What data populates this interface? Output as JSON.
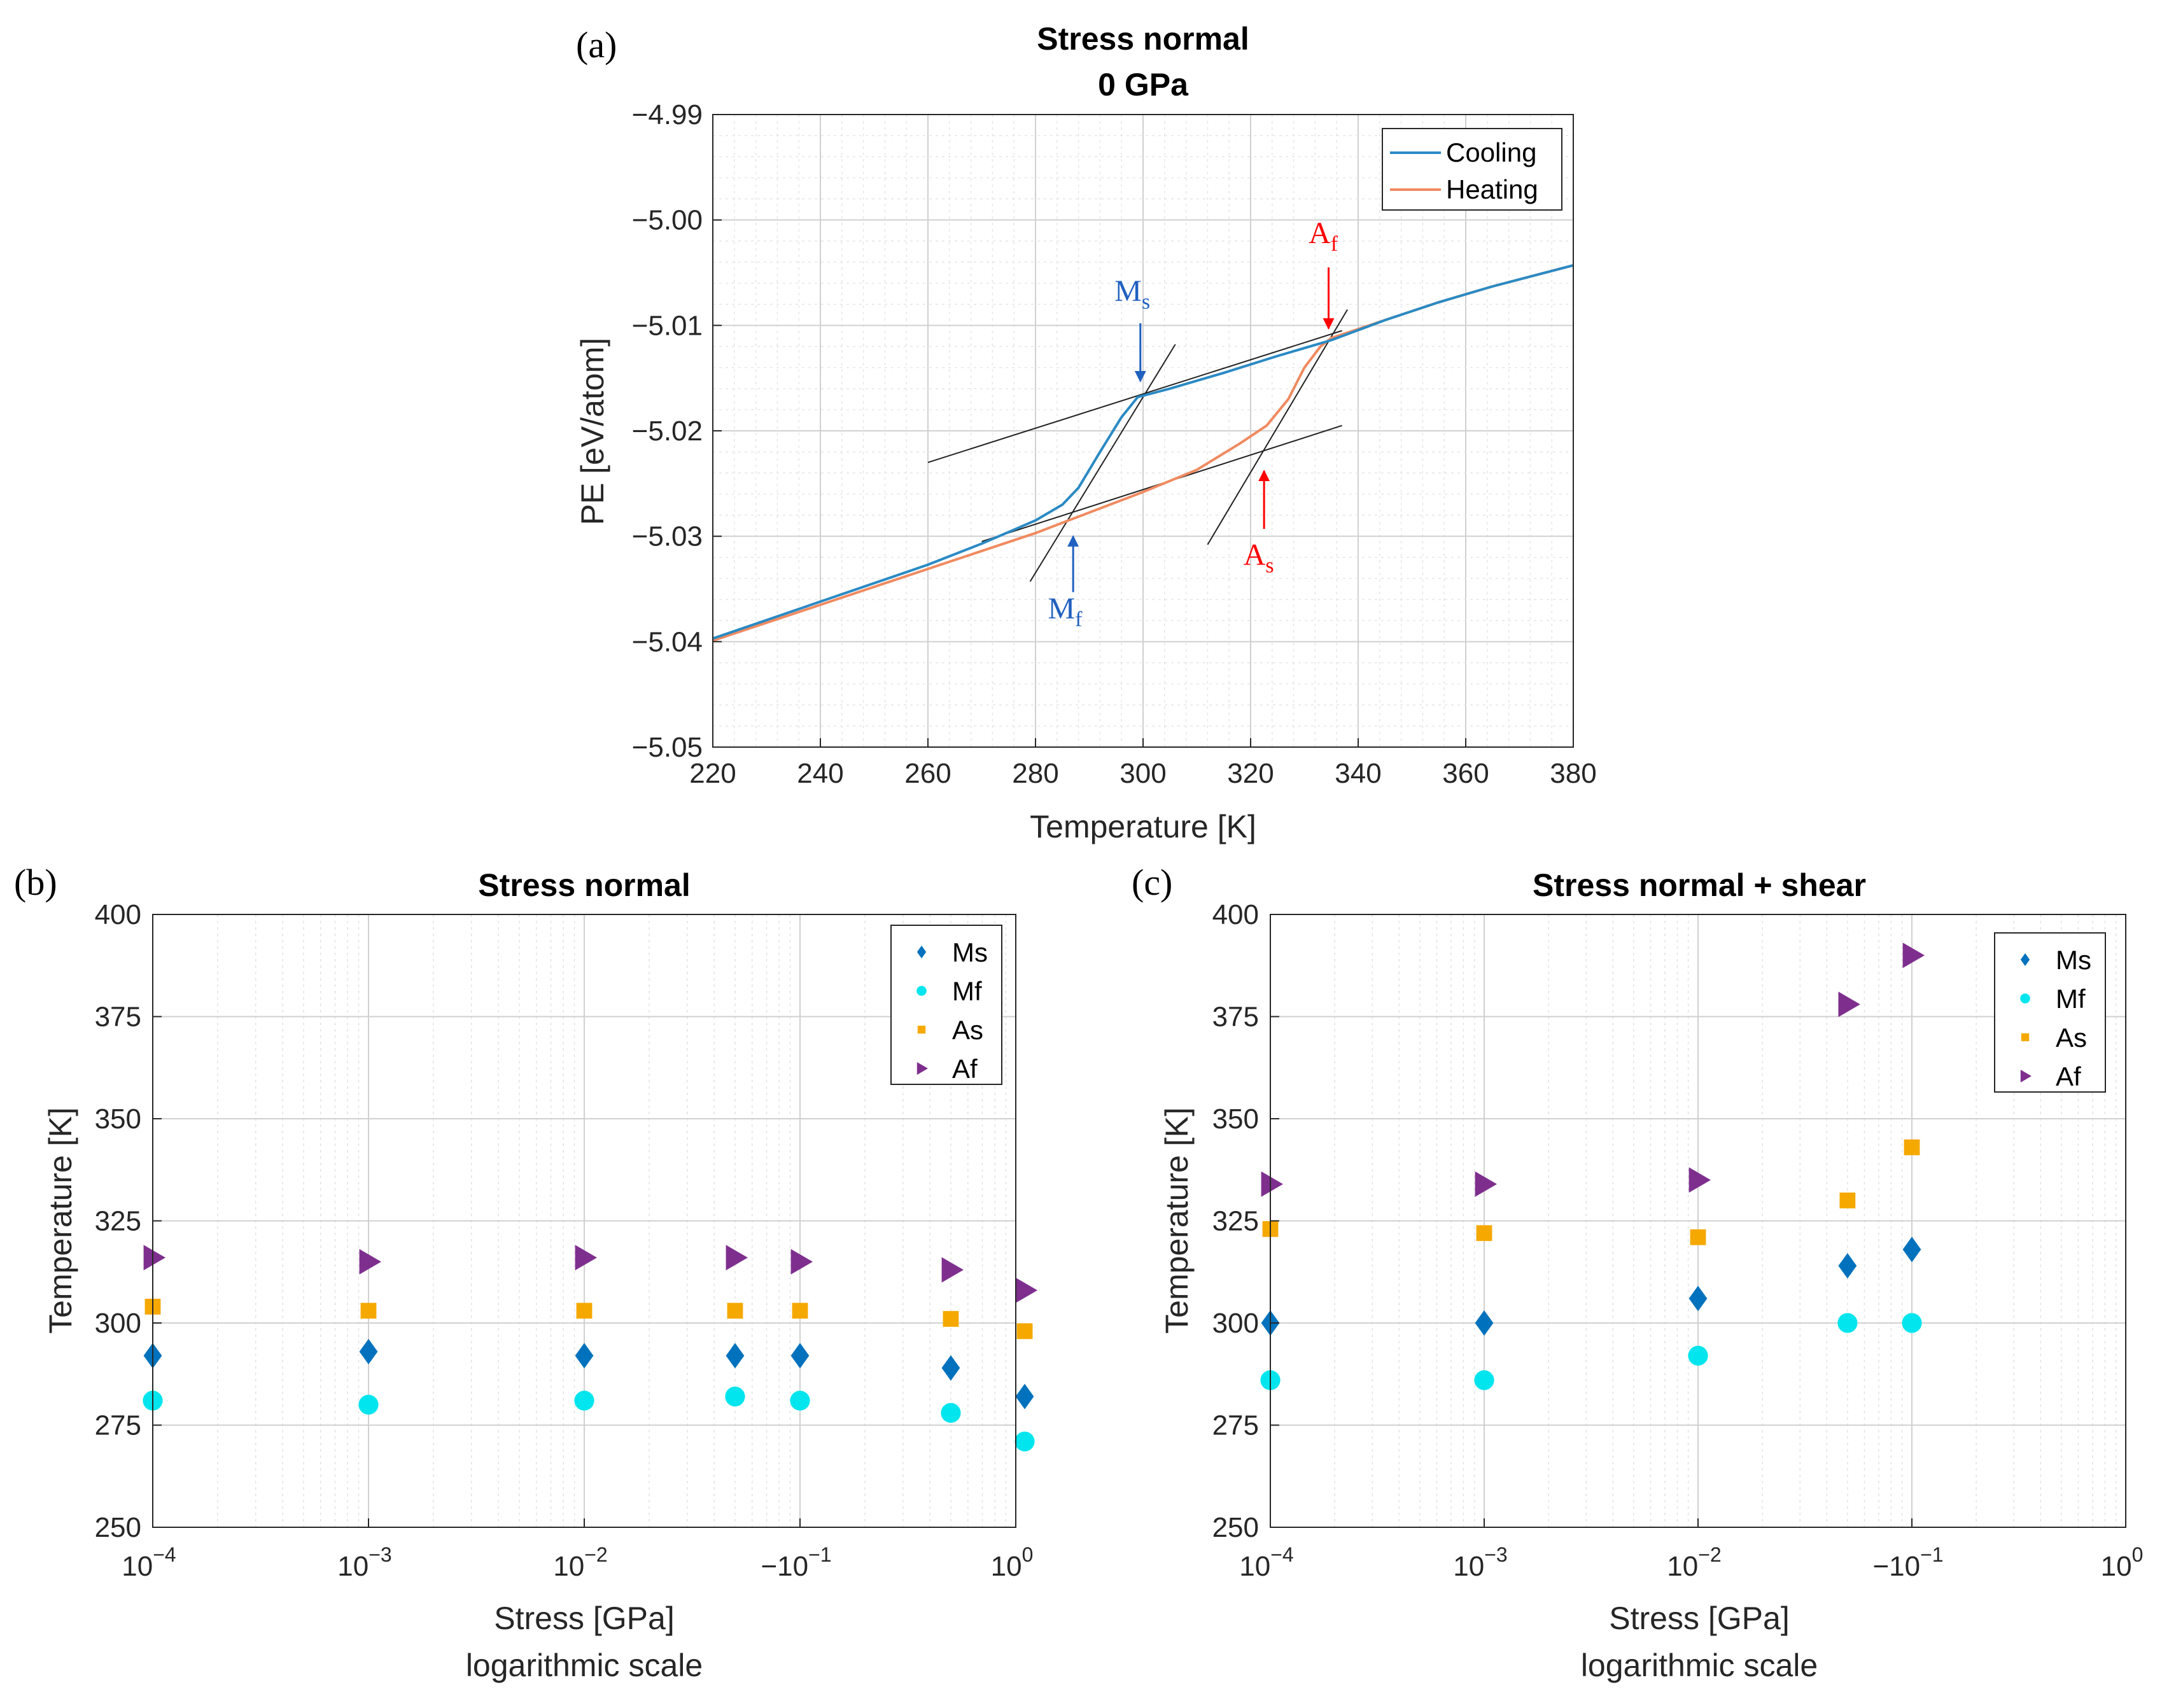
{
  "colors": {
    "cooling": "#2a8ac4",
    "heating": "#f08a60",
    "Ms": "#0072bd",
    "Mf": "#00e5ee",
    "As": "#f5a800",
    "Af": "#7e2f8e",
    "red": "#ff0000",
    "blue": "#2060c0"
  },
  "chart_data": [
    {
      "id": "a",
      "panel_label": "(a)",
      "type": "line",
      "title": [
        "Stress normal",
        "0 GPa"
      ],
      "xlabel": "Temperature [K]",
      "ylabel": "PE [eV/atom]",
      "xlim": [
        220,
        380
      ],
      "ylim": [
        -5.05,
        -4.99
      ],
      "xticks": [
        220,
        240,
        260,
        280,
        300,
        320,
        340,
        360,
        380
      ],
      "xtick_labels": [
        "220",
        "240",
        "260",
        "280",
        "300",
        "320",
        "340",
        "360",
        "380"
      ],
      "yticks": [
        -5.05,
        -5.04,
        -5.03,
        -5.02,
        -5.01,
        -5.0,
        -4.99
      ],
      "ytick_labels": [
        "−5.05",
        "−5.04",
        "−5.03",
        "−5.02",
        "−5.01",
        "−5.00",
        "−4.99"
      ],
      "grid": true,
      "legend_position": "top-right",
      "series": [
        {
          "name": "Cooling",
          "color_key": "cooling",
          "x": [
            220,
            240,
            260,
            270,
            280,
            285,
            288,
            292,
            296,
            299,
            305,
            315,
            325,
            335,
            345,
            355,
            365,
            380
          ],
          "y": [
            -5.0397,
            -5.0362,
            -5.0327,
            -5.0307,
            -5.0285,
            -5.027,
            -5.0254,
            -5.022,
            -5.0187,
            -5.0168,
            -5.016,
            -5.0145,
            -5.0129,
            -5.0114,
            -5.0095,
            -5.0078,
            -5.0063,
            -5.0043
          ]
        },
        {
          "name": "Heating",
          "color_key": "heating",
          "x": [
            220,
            240,
            260,
            280,
            300,
            310,
            318,
            323,
            327,
            330,
            333,
            335,
            345,
            355,
            365,
            380
          ],
          "y": [
            -5.0399,
            -5.0365,
            -5.0331,
            -5.0297,
            -5.0258,
            -5.0237,
            -5.0212,
            -5.0195,
            -5.017,
            -5.014,
            -5.012,
            -5.0112,
            -5.0095,
            -5.0078,
            -5.0063,
            -5.0043
          ]
        }
      ],
      "reference_lines": [
        {
          "x": [
            260,
            337
          ],
          "y": [
            -5.023,
            -5.0105
          ]
        },
        {
          "x": [
            270,
            337
          ],
          "y": [
            -5.0305,
            -5.0195
          ]
        },
        {
          "x": [
            279,
            306
          ],
          "y": [
            -5.0343,
            -5.0118
          ]
        },
        {
          "x": [
            312,
            338
          ],
          "y": [
            -5.0308,
            -5.0085
          ]
        }
      ],
      "annotations": [
        {
          "label": "M",
          "sub": "s",
          "color_key": "blue",
          "text_at": [
            298.0,
            -5.0077
          ],
          "arrow_from": [
            299.5,
            -5.0098
          ],
          "arrow_to": [
            299.5,
            -5.0153
          ]
        },
        {
          "label": "M",
          "sub": "f",
          "color_key": "blue",
          "text_at": [
            285.5,
            -5.0378
          ],
          "arrow_from": [
            287.0,
            -5.0353
          ],
          "arrow_to": [
            287.0,
            -5.03
          ]
        },
        {
          "label": "A",
          "sub": "f",
          "color_key": "red",
          "text_at": [
            333.5,
            -5.0022
          ],
          "arrow_from": [
            334.5,
            -5.0045
          ],
          "arrow_to": [
            334.5,
            -5.0103
          ]
        },
        {
          "label": "A",
          "sub": "s",
          "color_key": "red",
          "text_at": [
            321.5,
            -5.0327
          ],
          "arrow_from": [
            322.5,
            -5.0293
          ],
          "arrow_to": [
            322.5,
            -5.0238
          ]
        }
      ]
    },
    {
      "id": "b",
      "panel_label": "(b)",
      "type": "scatter",
      "title": "Stress normal",
      "xlabel": "Stress [GPa]",
      "xlabel2": "logarithmic scale",
      "ylabel": "Temperature [K]",
      "xscale": "log",
      "xlim_exp": [
        -4,
        0
      ],
      "ylim": [
        250,
        400
      ],
      "yticks": [
        250,
        275,
        300,
        325,
        350,
        375,
        400
      ],
      "xtick_labels": [
        {
          "exp": -4,
          "base": "10",
          "sup": "−4"
        },
        {
          "exp": -3,
          "base": "10",
          "sup": "−3"
        },
        {
          "exp": -2,
          "base": "10",
          "sup": "−2"
        },
        {
          "exp": -1,
          "base": "−10",
          "sup": "−1"
        },
        {
          "exp": 0,
          "base": "10",
          "sup": "0"
        }
      ],
      "grid": true,
      "legend_position": "top-right",
      "x": [
        0.0001,
        0.001,
        0.01,
        0.05,
        0.1,
        0.5,
        1.1
      ],
      "series": [
        {
          "name": "Ms",
          "marker": "diamond",
          "color_key": "Ms",
          "values": [
            292,
            293,
            292,
            292,
            292,
            289,
            282
          ]
        },
        {
          "name": "Mf",
          "marker": "circle",
          "color_key": "Mf",
          "values": [
            281,
            280,
            281,
            282,
            281,
            278,
            271
          ]
        },
        {
          "name": "As",
          "marker": "square",
          "color_key": "As",
          "values": [
            304,
            303,
            303,
            303,
            303,
            301,
            298
          ]
        },
        {
          "name": "Af",
          "marker": "triangle-right",
          "color_key": "Af",
          "values": [
            316,
            315,
            316,
            316,
            315,
            313,
            308
          ]
        }
      ]
    },
    {
      "id": "c",
      "panel_label": "(c)",
      "type": "scatter",
      "title": "Stress normal + shear",
      "xlabel": "Stress [GPa]",
      "xlabel2": "logarithmic scale",
      "ylabel": "Temperature [K]",
      "xscale": "log",
      "xlim_exp": [
        -4,
        0
      ],
      "ylim": [
        250,
        400
      ],
      "yticks": [
        250,
        275,
        300,
        325,
        350,
        375,
        400
      ],
      "xtick_labels": [
        {
          "exp": -4,
          "base": "10",
          "sup": "−4"
        },
        {
          "exp": -3,
          "base": "10",
          "sup": "−3"
        },
        {
          "exp": -2,
          "base": "10",
          "sup": "−2"
        },
        {
          "exp": -1,
          "base": "−10",
          "sup": "−1"
        },
        {
          "exp": 0,
          "base": "10",
          "sup": "0"
        }
      ],
      "grid": true,
      "legend_position": "top-right",
      "x": [
        0.0001,
        0.001,
        0.01,
        0.05,
        0.1
      ],
      "series": [
        {
          "name": "Ms",
          "marker": "diamond",
          "color_key": "Ms",
          "values": [
            300,
            300,
            306,
            314,
            318
          ]
        },
        {
          "name": "Mf",
          "marker": "circle",
          "color_key": "Mf",
          "values": [
            286,
            286,
            292,
            300,
            300
          ]
        },
        {
          "name": "As",
          "marker": "square",
          "color_key": "As",
          "values": [
            323,
            322,
            321,
            330,
            343
          ]
        },
        {
          "name": "Af",
          "marker": "triangle-right",
          "color_key": "Af",
          "values": [
            334,
            334,
            335,
            378,
            390
          ]
        }
      ]
    }
  ]
}
